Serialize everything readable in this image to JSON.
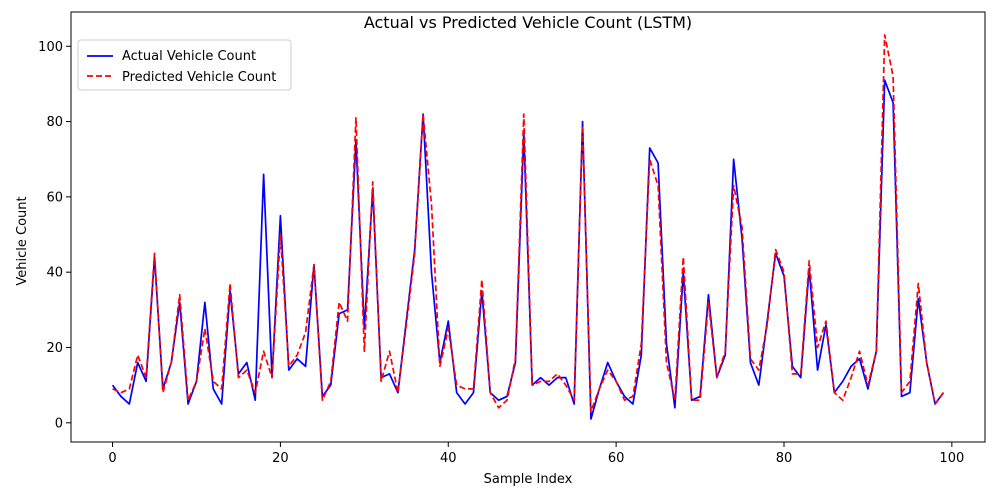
{
  "chart_data": {
    "type": "line",
    "title": "Actual vs Predicted Vehicle Count (LSTM)",
    "xlabel": "Sample Index",
    "ylabel": "Vehicle Count",
    "xlim": [
      -4.95,
      103.95
    ],
    "ylim": [
      -5.1,
      109.1
    ],
    "xticks": [
      0,
      20,
      40,
      60,
      80,
      100
    ],
    "yticks": [
      0,
      20,
      40,
      60,
      80,
      100
    ],
    "grid": false,
    "legend": "top-left",
    "series": [
      {
        "name": "Actual Vehicle Count",
        "color": "#0000ff",
        "dash": "solid",
        "values": [
          10,
          7,
          5,
          16,
          11,
          44,
          9,
          16,
          32,
          5,
          11,
          32,
          9,
          5,
          35,
          13,
          16,
          6,
          66,
          12,
          55,
          14,
          17,
          15,
          42,
          7,
          10,
          29,
          30,
          75,
          25,
          62,
          12,
          13,
          8,
          27,
          46,
          82,
          40,
          16,
          27,
          8,
          5,
          8,
          35,
          8,
          6,
          7,
          16,
          77,
          10,
          12,
          10,
          12,
          12,
          5,
          80,
          1,
          9,
          16,
          11,
          7,
          5,
          18,
          73,
          69,
          21,
          4,
          40,
          6,
          7,
          34,
          12,
          18,
          70,
          49,
          16,
          10,
          27,
          45,
          39,
          15,
          12,
          41,
          14,
          26,
          8,
          11,
          15,
          17,
          9,
          19,
          91,
          85,
          7,
          8,
          33,
          16,
          5,
          8
        ]
      },
      {
        "name": "Predicted Vehicle Count",
        "color": "#ff0000",
        "dash": "dashed",
        "values": [
          9,
          8,
          9,
          18,
          12,
          45,
          8,
          16,
          34,
          6,
          11,
          25,
          11,
          9,
          37,
          12,
          14,
          8,
          19,
          12,
          50,
          15,
          18,
          24,
          42,
          6,
          11,
          32,
          27,
          81,
          19,
          64,
          11,
          19,
          8,
          26,
          45,
          82,
          58,
          15,
          25,
          10,
          9,
          9,
          38,
          8,
          4,
          6,
          17,
          82,
          10,
          11,
          11,
          13,
          10,
          6,
          79,
          3,
          9,
          14,
          11,
          6,
          7,
          21,
          70,
          63,
          16,
          6,
          44,
          6,
          6,
          32,
          12,
          19,
          63,
          52,
          17,
          14,
          26,
          46,
          40,
          13,
          13,
          43,
          20,
          27,
          8,
          6,
          12,
          19,
          10,
          19,
          103,
          92,
          8,
          11,
          37,
          16,
          5,
          8
        ]
      }
    ]
  }
}
